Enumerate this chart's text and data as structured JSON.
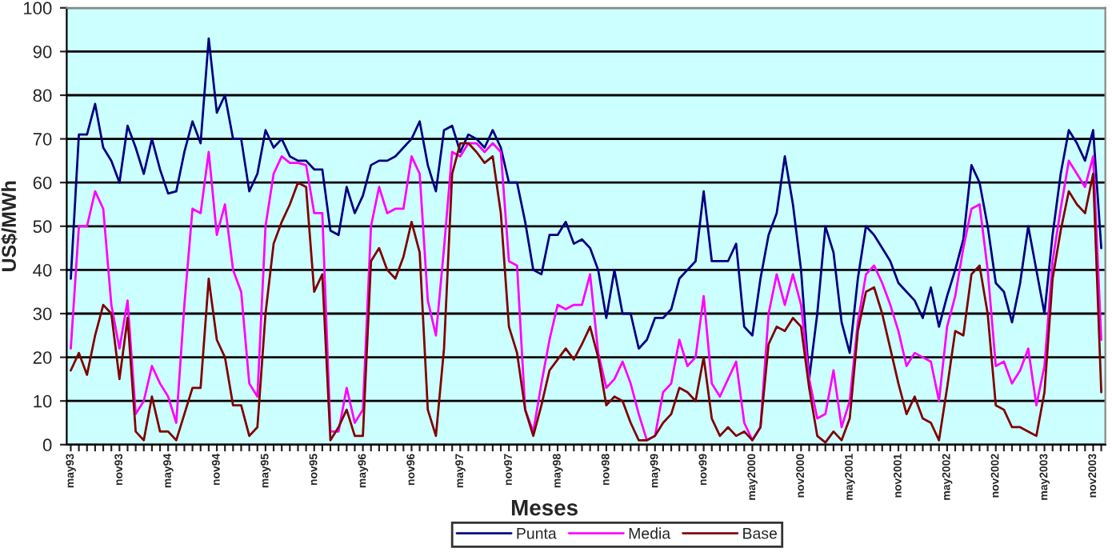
{
  "chart_data": {
    "type": "line",
    "xlabel": "Meses",
    "ylabel": "US$/MWh",
    "categories": [
      "may93",
      null,
      null,
      null,
      null,
      null,
      "nov93",
      null,
      null,
      null,
      null,
      null,
      "may94",
      null,
      null,
      null,
      null,
      null,
      "nov94",
      null,
      null,
      null,
      null,
      null,
      "may95",
      null,
      null,
      null,
      null,
      null,
      "nov95",
      null,
      null,
      null,
      null,
      null,
      "may96",
      null,
      null,
      null,
      null,
      null,
      "nov96",
      null,
      null,
      null,
      null,
      null,
      "may97",
      null,
      null,
      null,
      null,
      null,
      "nov97",
      null,
      null,
      null,
      null,
      null,
      "may98",
      null,
      null,
      null,
      null,
      null,
      "nov98",
      null,
      null,
      null,
      null,
      null,
      "may99",
      null,
      null,
      null,
      null,
      null,
      "nov99",
      null,
      null,
      null,
      null,
      null,
      "may2000",
      null,
      null,
      null,
      null,
      null,
      "nov2000",
      null,
      null,
      null,
      null,
      null,
      "may2001",
      null,
      null,
      null,
      null,
      null,
      "nov2001",
      null,
      null,
      null,
      null,
      null,
      "may2002",
      null,
      null,
      null,
      null,
      null,
      "nov2002",
      null,
      null,
      null,
      null,
      null,
      "may2003",
      null,
      null,
      null,
      null,
      null,
      "nov2003",
      null
    ],
    "series": [
      {
        "name": "Punta",
        "color": "#000080",
        "values": [
          38,
          71,
          71,
          78,
          68,
          65,
          60,
          73,
          68,
          62,
          70,
          63,
          57.5,
          58,
          67,
          74,
          69,
          93,
          76,
          80,
          70,
          70,
          58,
          62,
          72,
          68,
          70,
          66,
          65,
          65,
          63,
          63,
          49,
          48,
          59,
          53,
          57,
          64,
          65,
          65,
          66,
          68,
          70,
          74,
          64,
          58,
          72,
          73,
          67,
          71,
          70,
          68,
          72,
          68,
          60,
          60,
          51,
          40,
          39,
          48,
          48,
          51,
          46,
          47,
          45,
          40,
          29,
          40,
          30,
          30,
          22,
          24,
          29,
          29,
          31,
          38,
          40,
          42,
          58,
          42,
          42,
          42,
          46,
          27,
          25,
          38,
          48,
          53,
          66,
          55,
          40,
          15,
          30,
          50,
          44,
          28,
          21,
          38,
          50,
          48,
          45,
          42,
          37,
          35,
          33,
          29,
          36,
          27,
          34,
          40,
          47,
          64,
          60,
          50,
          37,
          35,
          28,
          37,
          50,
          40,
          30,
          48,
          62,
          72,
          69,
          65,
          72,
          45
        ]
      },
      {
        "name": "Media",
        "color": "#ff00ff",
        "values": [
          22,
          50,
          50,
          58,
          54,
          32,
          22,
          33,
          7,
          10,
          18,
          14,
          11,
          5,
          32,
          54,
          53,
          67,
          48,
          55,
          40,
          35,
          14,
          11,
          50,
          62,
          66,
          64.5,
          64.5,
          64,
          53,
          53,
          3,
          3,
          13,
          5,
          8,
          50,
          59,
          53,
          54,
          54,
          66,
          62,
          33,
          25,
          45,
          67,
          66,
          69,
          69,
          67,
          69,
          67,
          42,
          41,
          8,
          3,
          14,
          24,
          32,
          31,
          32,
          32,
          39,
          21,
          13,
          15,
          19,
          14,
          7,
          1,
          2,
          12,
          14,
          24,
          18,
          20,
          34,
          14,
          11,
          15,
          19,
          5,
          1,
          4,
          30,
          39,
          32,
          39,
          32,
          15,
          6,
          7,
          17,
          4,
          10,
          28,
          39,
          41,
          37,
          32,
          26,
          18,
          21,
          20,
          19,
          10,
          27,
          34,
          45,
          54,
          55,
          40,
          18,
          19,
          14,
          17,
          22,
          9,
          18,
          42,
          54,
          65,
          62,
          59,
          66,
          24
        ]
      },
      {
        "name": "Base",
        "color": "#800000",
        "values": [
          17,
          21,
          16,
          25,
          32,
          30,
          15,
          29,
          3,
          1,
          11,
          3,
          3,
          1,
          7,
          13,
          13,
          38,
          24,
          20,
          9,
          9,
          2,
          4,
          30,
          46,
          51,
          55,
          60,
          59,
          35,
          39,
          1,
          4,
          8,
          2,
          2,
          42,
          45,
          40,
          38,
          43,
          51,
          44,
          8,
          2,
          22,
          62,
          69,
          69,
          67,
          64.5,
          66,
          53,
          27,
          21,
          8,
          2,
          9,
          17,
          19.5,
          22,
          19.5,
          23,
          27,
          20,
          9,
          11,
          10,
          5,
          1,
          1,
          2,
          5,
          7,
          13,
          12,
          10,
          20,
          6,
          2,
          4,
          2,
          3,
          1,
          4,
          23,
          27,
          26,
          29,
          27,
          13,
          2,
          0.5,
          3,
          1,
          6,
          26,
          35,
          36,
          30,
          22,
          14,
          7,
          11,
          6,
          5,
          1,
          13,
          26,
          25,
          39,
          41,
          30,
          9,
          8,
          4,
          4,
          3,
          2,
          12,
          38,
          49,
          58,
          55,
          53,
          62,
          12
        ]
      }
    ],
    "ylim": [
      0,
      100
    ],
    "yticks": [
      0,
      10,
      20,
      30,
      40,
      50,
      60,
      70,
      80,
      90,
      100
    ],
    "grid": "y",
    "legend": "bottom",
    "marker": "none",
    "line_style": "solid"
  }
}
